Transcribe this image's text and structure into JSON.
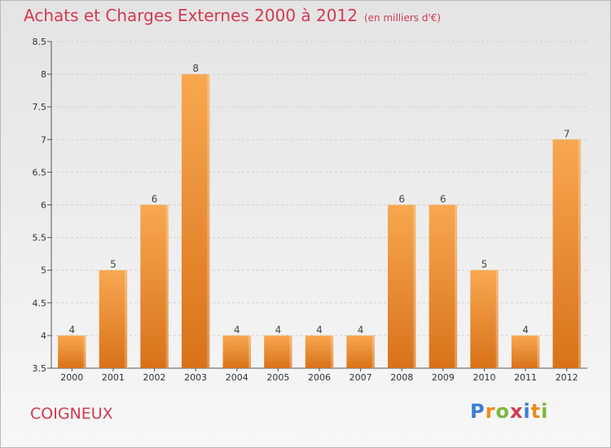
{
  "header": {
    "title": "Achats et Charges Externes 2000 à 2012",
    "unit": "(en milliers d'€)"
  },
  "footer": {
    "commune": "COIGNEUX",
    "logo_letters": [
      "P",
      "r",
      "o",
      "x",
      "i",
      "t",
      "i"
    ]
  },
  "colors": {
    "title": "#d23a50",
    "bar_top": "#f8a850",
    "bar_bottom": "#d8721a",
    "logo": [
      "#3a7fd0",
      "#f08a1e",
      "#7ab83a",
      "#d23a50",
      "#3a7fd0",
      "#f08a1e",
      "#7ab83a"
    ]
  },
  "chart_data": {
    "type": "bar",
    "title": "Achats et Charges Externes 2000 à 2012",
    "subtitle": "(en milliers d'€)",
    "xlabel": "",
    "ylabel": "",
    "categories": [
      "2000",
      "2001",
      "2002",
      "2003",
      "2004",
      "2005",
      "2006",
      "2007",
      "2008",
      "2009",
      "2010",
      "2011",
      "2012"
    ],
    "values": [
      4,
      5,
      6,
      8,
      4,
      4,
      4,
      4,
      6,
      6,
      5,
      4,
      7
    ],
    "value_labels": [
      "4",
      "5",
      "6",
      "8",
      "4",
      "4",
      "4",
      "4",
      "6",
      "6",
      "5",
      "4",
      "7"
    ],
    "ylim": [
      3.5,
      8.5
    ],
    "yticks": [
      3.5,
      4,
      4.5,
      5,
      5.5,
      6,
      6.5,
      7,
      7.5,
      8,
      8.5
    ],
    "ytick_labels": [
      "3.5",
      "4",
      "4.5",
      "5",
      "5.5",
      "6",
      "6.5",
      "7",
      "7.5",
      "8",
      "8.5"
    ],
    "grid": true,
    "legend": "none"
  }
}
